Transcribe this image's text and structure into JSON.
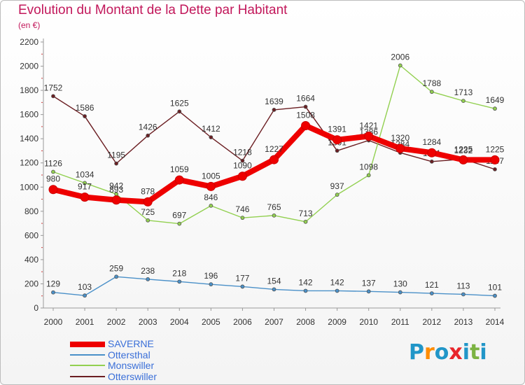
{
  "title": "Evolution du Montant de la Dette par Habitant",
  "subtitle": "(en €)",
  "logo": {
    "letters": [
      "P",
      "r",
      "o",
      "x",
      "i",
      "t",
      "i"
    ],
    "colors": [
      "#2196c8",
      "#ff8c00",
      "#2196c8",
      "#e8252b",
      "#2196c8",
      "#7cb342",
      "#2196c8"
    ]
  },
  "chart_data": {
    "type": "line",
    "x": [
      "2000",
      "2001",
      "2002",
      "2003",
      "2004",
      "2005",
      "2006",
      "2007",
      "2008",
      "2009",
      "2010",
      "2011",
      "2012",
      "2013",
      "2014"
    ],
    "ylim": [
      0,
      2200
    ],
    "yticks": [
      "0",
      "200",
      "400",
      "600",
      "800",
      "1000",
      "1200",
      "1400",
      "1600",
      "1800",
      "2000",
      "2200"
    ],
    "grid": false,
    "legend_position": "bottom-left",
    "series": [
      {
        "name": "Otterswiller",
        "color": "#6b1e22",
        "width": 1.4,
        "marker": 5,
        "values": [
          1752,
          1586,
          1195,
          1426,
          1625,
          1412,
          1218,
          1639,
          1664,
          1301,
          1386,
          1284,
          1211,
          1232,
          1147
        ],
        "labels": [
          "1752",
          "1586",
          "1195",
          "1426",
          "1625",
          "1412",
          "1218",
          "1639",
          "1664",
          "1301",
          "1386",
          "1284",
          "1211",
          "1232",
          "1147"
        ]
      },
      {
        "name": "Monswiller",
        "color": "#92d050",
        "width": 1.4,
        "marker": 5,
        "values": [
          1126,
          1034,
          942,
          725,
          697,
          846,
          746,
          765,
          713,
          937,
          1098,
          2006,
          1788,
          1713,
          1649
        ],
        "labels": [
          "1126",
          "1034",
          "942",
          "725",
          "697",
          "846",
          "746",
          "765",
          "713",
          "937",
          "1098",
          "2006",
          "1788",
          "1713",
          "1649"
        ]
      },
      {
        "name": "Ottersthal",
        "color": "#4a90c8",
        "width": 1.4,
        "marker": 5,
        "values": [
          129,
          103,
          259,
          238,
          218,
          196,
          177,
          154,
          142,
          142,
          137,
          130,
          121,
          113,
          101
        ],
        "labels": [
          "129",
          "103",
          "259",
          "238",
          "218",
          "196",
          "177",
          "154",
          "142",
          "142",
          "137",
          "130",
          "121",
          "113",
          "101"
        ]
      },
      {
        "name": "SAVERNE",
        "color": "#ee0000",
        "width": 8,
        "marker": 12,
        "values": [
          980,
          917,
          893,
          878,
          1059,
          1005,
          1090,
          1227,
          1508,
          1391,
          1421,
          1320,
          1284,
          1225,
          1225
        ],
        "labels": [
          "980",
          "917",
          "893",
          "878",
          "1059",
          "1005",
          "1090",
          "1227",
          "1508",
          "1391",
          "1421",
          "1320",
          "1284",
          "1225",
          "1225"
        ]
      }
    ]
  },
  "legend": [
    {
      "name": "SAVERNE",
      "color": "#ee0000"
    },
    {
      "name": "Ottersthal",
      "color": "#4a90c8"
    },
    {
      "name": "Monswiller",
      "color": "#92d050"
    },
    {
      "name": "Otterswiller",
      "color": "#6b1e22"
    }
  ]
}
